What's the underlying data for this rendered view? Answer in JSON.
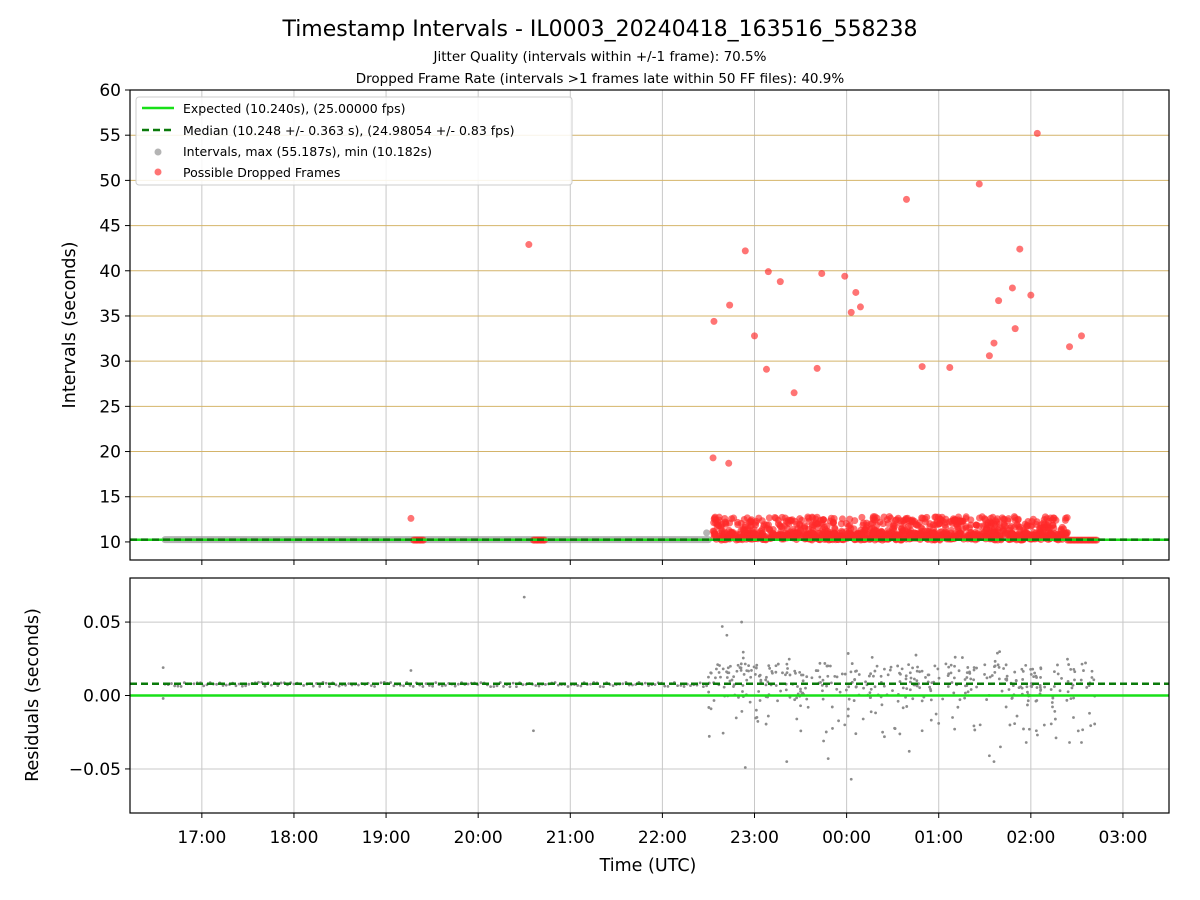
{
  "title": "Timestamp Intervals - IL0003_20240418_163516_558238",
  "subtitles": [
    "Jitter Quality (intervals within +/-1 frame): 70.5%",
    "Dropped Frame Rate (intervals >1 frames late within 50 FF files): 40.9%"
  ],
  "colors": {
    "expected": "#18e018",
    "median": "#0a7a0a",
    "intervals": "#8c8c8c",
    "dropped": "#ff2a2a",
    "hgrid_top": "#d4b46a",
    "grid": "#c8c8c8"
  },
  "chart_data": [
    {
      "type": "scatter",
      "panel": "top",
      "ylabel": "Intervals (seconds)",
      "ylim": [
        8,
        60
      ],
      "yticks": [
        "10",
        "15",
        "20",
        "25",
        "30",
        "35",
        "40",
        "45",
        "50",
        "55",
        "60"
      ],
      "x_unit": "hours since 16:00 UTC",
      "xlim": [
        0.22,
        11.5
      ],
      "legend_position": "top-left",
      "legend": [
        "Expected (10.240s), (25.00000 fps)",
        "Median (10.248 +/- 0.363 s), (24.98054 +/- 0.83 fps)",
        "Intervals, max (55.187s), min (10.182s)",
        "Possible Dropped Frames"
      ],
      "expected_line": 10.24,
      "median_line": 10.248,
      "series": [
        {
          "name": "Intervals, max (55.187s), min (10.182s)",
          "note": "dense band near 10.25 s from 16:35 to 22:30",
          "x": [
            0.6,
            6.5
          ],
          "y": [
            10.25,
            10.25
          ],
          "points": [
            [
              6.48,
              11.0
            ]
          ]
        },
        {
          "name": "Possible Dropped Frames",
          "points": [
            [
              3.27,
              12.6
            ],
            [
              4.55,
              42.9
            ],
            [
              6.55,
              19.3
            ],
            [
              6.56,
              34.4
            ],
            [
              6.72,
              18.7
            ],
            [
              6.73,
              36.2
            ],
            [
              6.9,
              42.2
            ],
            [
              7.0,
              32.8
            ],
            [
              7.13,
              29.1
            ],
            [
              7.15,
              39.9
            ],
            [
              7.28,
              38.8
            ],
            [
              7.43,
              26.5
            ],
            [
              7.68,
              29.2
            ],
            [
              7.73,
              39.7
            ],
            [
              7.98,
              39.4
            ],
            [
              8.05,
              35.4
            ],
            [
              8.1,
              37.6
            ],
            [
              8.15,
              36.0
            ],
            [
              8.65,
              47.9
            ],
            [
              8.82,
              29.4
            ],
            [
              9.12,
              29.3
            ],
            [
              9.44,
              49.6
            ],
            [
              9.55,
              30.6
            ],
            [
              9.6,
              32.0
            ],
            [
              9.65,
              36.7
            ],
            [
              9.8,
              38.1
            ],
            [
              9.83,
              33.6
            ],
            [
              9.88,
              42.4
            ],
            [
              10.0,
              37.3
            ],
            [
              10.07,
              55.2
            ],
            [
              10.42,
              31.6
            ],
            [
              10.55,
              32.8
            ]
          ],
          "clusters_at_10": [
            [
              3.3,
              3.42
            ],
            [
              4.6,
              4.72
            ],
            [
              10.4,
              10.72
            ]
          ],
          "dense_band": {
            "x": [
              6.55,
              10.4
            ],
            "y": [
              10.2,
              12.8
            ]
          }
        }
      ]
    },
    {
      "type": "scatter",
      "panel": "bottom",
      "xlabel": "Time (UTC)",
      "ylabel": "Residuals (seconds)",
      "ylim": [
        -0.08,
        0.08
      ],
      "yticks": [
        "0.05",
        "0.00",
        "−0.05"
      ],
      "xticks": [
        "17:00",
        "18:00",
        "19:00",
        "20:00",
        "21:00",
        "22:00",
        "23:00",
        "00:00",
        "01:00",
        "02:00",
        "03:00"
      ],
      "x_unit": "hours since 16:00 UTC",
      "xlim": [
        0.22,
        11.5
      ],
      "expected_line": 0.0,
      "median_line": 0.008,
      "series": [
        {
          "name": "Residuals",
          "points": [
            [
              0.58,
              0.019
            ],
            [
              0.58,
              -0.002
            ],
            [
              3.27,
              0.017
            ],
            [
              4.5,
              0.067
            ],
            [
              4.6,
              -0.024
            ],
            [
              6.6,
              0.021
            ],
            [
              6.65,
              0.047
            ],
            [
              6.7,
              0.041
            ],
            [
              6.86,
              0.05
            ],
            [
              6.9,
              -0.049
            ],
            [
              7.02,
              -0.01
            ],
            [
              7.15,
              -0.014
            ],
            [
              7.35,
              -0.045
            ],
            [
              7.5,
              -0.007
            ],
            [
              7.75,
              -0.031
            ],
            [
              7.8,
              -0.043
            ],
            [
              7.98,
              -0.02
            ],
            [
              8.05,
              -0.057
            ],
            [
              8.1,
              -0.026
            ],
            [
              8.18,
              -0.016
            ],
            [
              8.68,
              -0.038
            ],
            [
              8.82,
              -0.024
            ],
            [
              9.15,
              -0.015
            ],
            [
              9.45,
              -0.02
            ],
            [
              9.55,
              -0.041
            ],
            [
              9.6,
              -0.045
            ],
            [
              9.67,
              -0.035
            ],
            [
              9.85,
              -0.014
            ],
            [
              9.95,
              -0.032
            ],
            [
              10.06,
              -0.024
            ],
            [
              10.42,
              -0.032
            ],
            [
              10.55,
              -0.032
            ]
          ],
          "dense_band": {
            "x": [
              0.6,
              6.5
            ],
            "y": [
              0.006,
              0.009
            ]
          }
        }
      ]
    }
  ]
}
